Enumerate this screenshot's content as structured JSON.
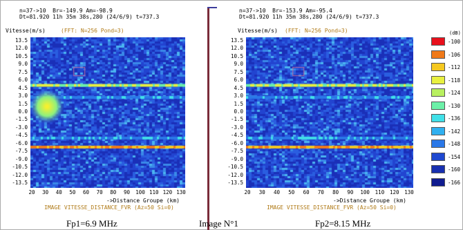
{
  "left_panel": {
    "header_line1": "n=37->10  Br=-149.9 Am=-98.9",
    "header_line2": "Dt=81.920 11h 35m 38s,280 (24/6/9) t=737.3",
    "y_title": "Vitesse(m/s)",
    "fft_label": "(FFT: N=256 Pond=3)",
    "x_title": "->Distance Groupe (km)",
    "footer": "IMAGE VITESSE_DISTANCE_FVR (Az=50 Si=0)",
    "y_ticks": [
      "13.5",
      "12.0",
      "10.5",
      "9.0",
      "7.5",
      "6.0",
      "4.5",
      "3.0",
      "1.5",
      "0.0",
      "-1.5",
      "-3.0",
      "-4.5",
      "-6.0",
      "-7.5",
      "-9.0",
      "-10.5",
      "-12.0",
      "-13.5"
    ],
    "x_ticks": [
      "20",
      "30",
      "40",
      "50",
      "60",
      "70",
      "80",
      "90",
      "100",
      "110",
      "120",
      "130"
    ]
  },
  "right_panel": {
    "header_line1": "n=37->10  Br=-153.9 Am=-95.4",
    "header_line2": "Dt=81.920 11h 35m 38s,280 (24/6/9) t=737.3",
    "y_title": "Vitesse(m/s)",
    "fft_label": "(FFT: N=256 Pond=3)",
    "x_title": "->Distance Groupe (km)",
    "footer": "IMAGE VITESSE_DISTANCE_FVR (Az=50 Si=0)",
    "y_ticks": [
      "13.5",
      "12.0",
      "10.5",
      "9.0",
      "7.5",
      "6.0",
      "4.5",
      "3.0",
      "1.5",
      "0.0",
      "-1.5",
      "-3.0",
      "-4.5",
      "-6.0",
      "-7.5",
      "-9.0",
      "-10.5",
      "-12.0",
      "-13.5"
    ],
    "x_ticks": [
      "20",
      "30",
      "40",
      "50",
      "60",
      "70",
      "80",
      "90",
      "100",
      "110",
      "120",
      "130"
    ]
  },
  "legend": {
    "unit": "(dB)",
    "levels": [
      "-100",
      "-106",
      "-112",
      "-118",
      "-124",
      "-130",
      "-136",
      "-142",
      "-148",
      "-154",
      "-160",
      "-166"
    ],
    "colors": [
      "#e8101c",
      "#f07a1a",
      "#f5c820",
      "#e8f040",
      "#b8f060",
      "#6cf0a8",
      "#40e0e8",
      "#30b0f0",
      "#2a78e8",
      "#1e48d0",
      "#1830b0",
      "#101c90"
    ]
  },
  "captions": {
    "left": "Fp1=6.9 MHz",
    "center": "Image N°1",
    "right": "Fp2=8.15 MHz"
  }
}
